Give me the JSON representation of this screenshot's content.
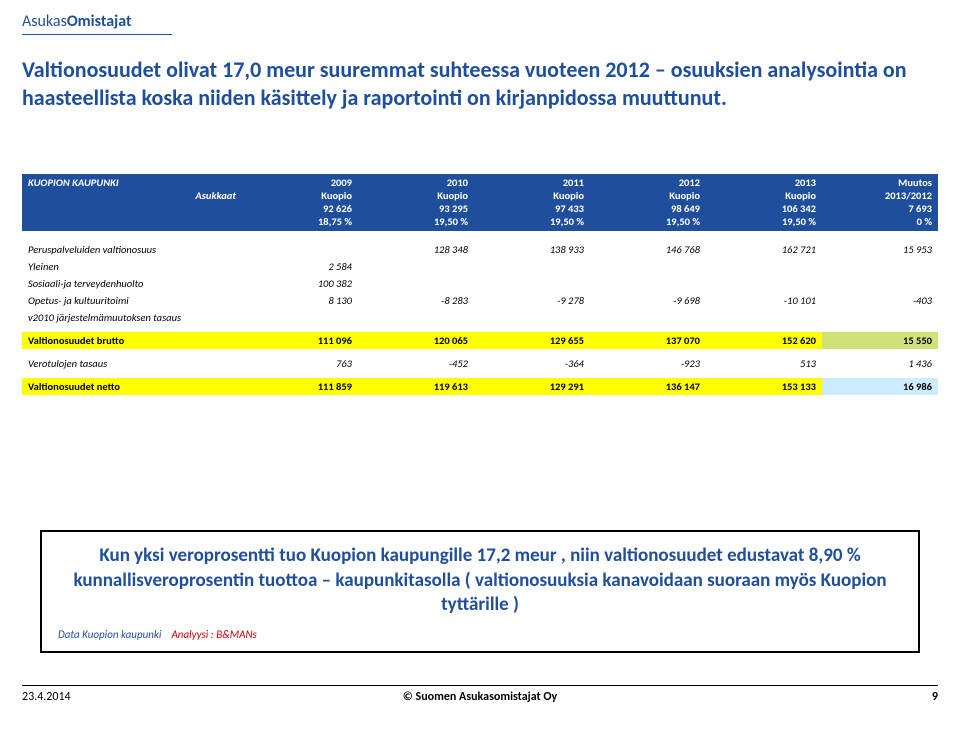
{
  "brand": {
    "part1": "Asukas",
    "part2": "Omistajat"
  },
  "heading": "Valtionosuudet olivat 17,0 meur suuremmat suhteessa vuoteen 2012 – osuuksien analysointia on haasteellista koska niiden käsittely ja raportointi on kirjanpidossa muuttunut.",
  "table": {
    "header_colors": {
      "bg": "#1f4e9c",
      "fg": "#ffffff"
    },
    "label_col1": "KUOPION KAUPUNKI",
    "label_col1_sub": "Asukkaat",
    "cols": [
      {
        "l1": "2009",
        "l2": "Kuopio",
        "l3": "92 626",
        "l4": "18,75 %"
      },
      {
        "l1": "2010",
        "l2": "Kuopio",
        "l3": "93 295",
        "l4": "19,50 %"
      },
      {
        "l1": "2011",
        "l2": "Kuopio",
        "l3": "97 433",
        "l4": "19,50 %"
      },
      {
        "l1": "2012",
        "l2": "Kuopio",
        "l3": "98 649",
        "l4": "19,50 %"
      },
      {
        "l1": "2013",
        "l2": "Kuopio",
        "l3": "106 342",
        "l4": "19,50 %"
      },
      {
        "l1": "Muutos",
        "l2": "2013/2012",
        "l3": "7 693",
        "l4": "0 %"
      }
    ],
    "rows": [
      {
        "label": "Peruspalveluiden valtionosuus",
        "vals": [
          "",
          "128 348",
          "138 933",
          "146 768",
          "162 721",
          "15 953"
        ],
        "italic": true
      },
      {
        "label": "Yleinen",
        "vals": [
          "2 584",
          "",
          "",
          "",
          "",
          ""
        ],
        "italic": true
      },
      {
        "label": "Sosiaali-ja terveydenhuolto",
        "vals": [
          "100 382",
          "",
          "",
          "",
          "",
          ""
        ],
        "italic": true
      },
      {
        "label": "Opetus- ja kultuuritoimi",
        "vals": [
          "8 130",
          "-8 283",
          "-9 278",
          "-9 698",
          "-10 101",
          "-403"
        ],
        "italic": true
      },
      {
        "label": "v2010 järjestelmämuutoksen tasaus",
        "vals": [
          "",
          "",
          "",
          "",
          "",
          ""
        ],
        "italic": true
      }
    ],
    "brutto": {
      "label": "Valtionosuudet brutto",
      "vals": [
        "111 096",
        "120 065",
        "129 655",
        "137 070",
        "152 620",
        "15 550"
      ]
    },
    "tasaus": {
      "label": "Verotulojen tasaus",
      "vals": [
        "763",
        "-452",
        "-364",
        "-923",
        "513",
        "1 436"
      ],
      "italic": true
    },
    "netto": {
      "label": "Valtionosuudet netto",
      "vals": [
        "111 859",
        "119 613",
        "129 291",
        "136 147",
        "153 133",
        "16 986"
      ]
    },
    "brutto_last_bg": "#d0e17a",
    "netto_last_bg": "#ccecff",
    "highlight_bg": "#ffff00"
  },
  "summary": {
    "text": "Kun yksi veroprosentti tuo Kuopion kaupungille 17,2 meur , niin valtionosuudet edustavat 8,90 % kunnallisveroprosentin tuottoa – kaupunkitasolla ( valtionosuuksia kanavoidaan suoraan myös Kuopion tyttärille )",
    "credit1": "Data Kuopion kaupunki",
    "credit2": "Analyysi : B&MANs"
  },
  "footer": {
    "date": "23.4.2014",
    "center": "© Suomen Asukasomistajat Oy",
    "page": "9"
  }
}
